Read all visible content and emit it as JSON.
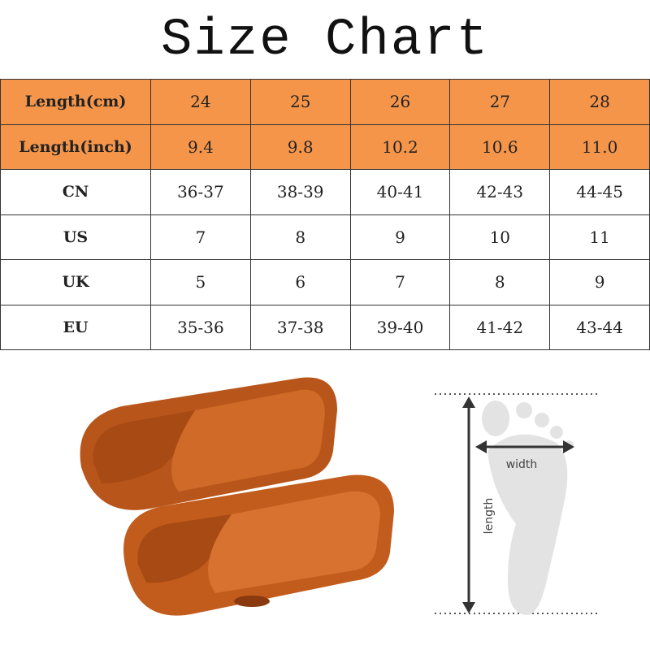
{
  "title": "Size Chart",
  "table": {
    "rows": [
      {
        "label": "Length(cm)",
        "values": [
          "24",
          "25",
          "26",
          "27",
          "28"
        ],
        "highlight": true
      },
      {
        "label": "Length(inch)",
        "values": [
          "9.4",
          "9.8",
          "10.2",
          "10.6",
          "11.0"
        ],
        "highlight": true
      },
      {
        "label": "CN",
        "values": [
          "36-37",
          "38-39",
          "40-41",
          "42-43",
          "44-45"
        ]
      },
      {
        "label": "US",
        "values": [
          "7",
          "8",
          "9",
          "10",
          "11"
        ]
      },
      {
        "label": "UK",
        "values": [
          "5",
          "6",
          "7",
          "8",
          "9"
        ]
      },
      {
        "label": "EU",
        "values": [
          "35-36",
          "37-38",
          "39-40",
          "41-42",
          "43-44"
        ]
      }
    ]
  },
  "diagram": {
    "width_label": "width",
    "length_label": "length"
  },
  "colors": {
    "header": "#f5954a",
    "slipper": "#c8601e"
  }
}
